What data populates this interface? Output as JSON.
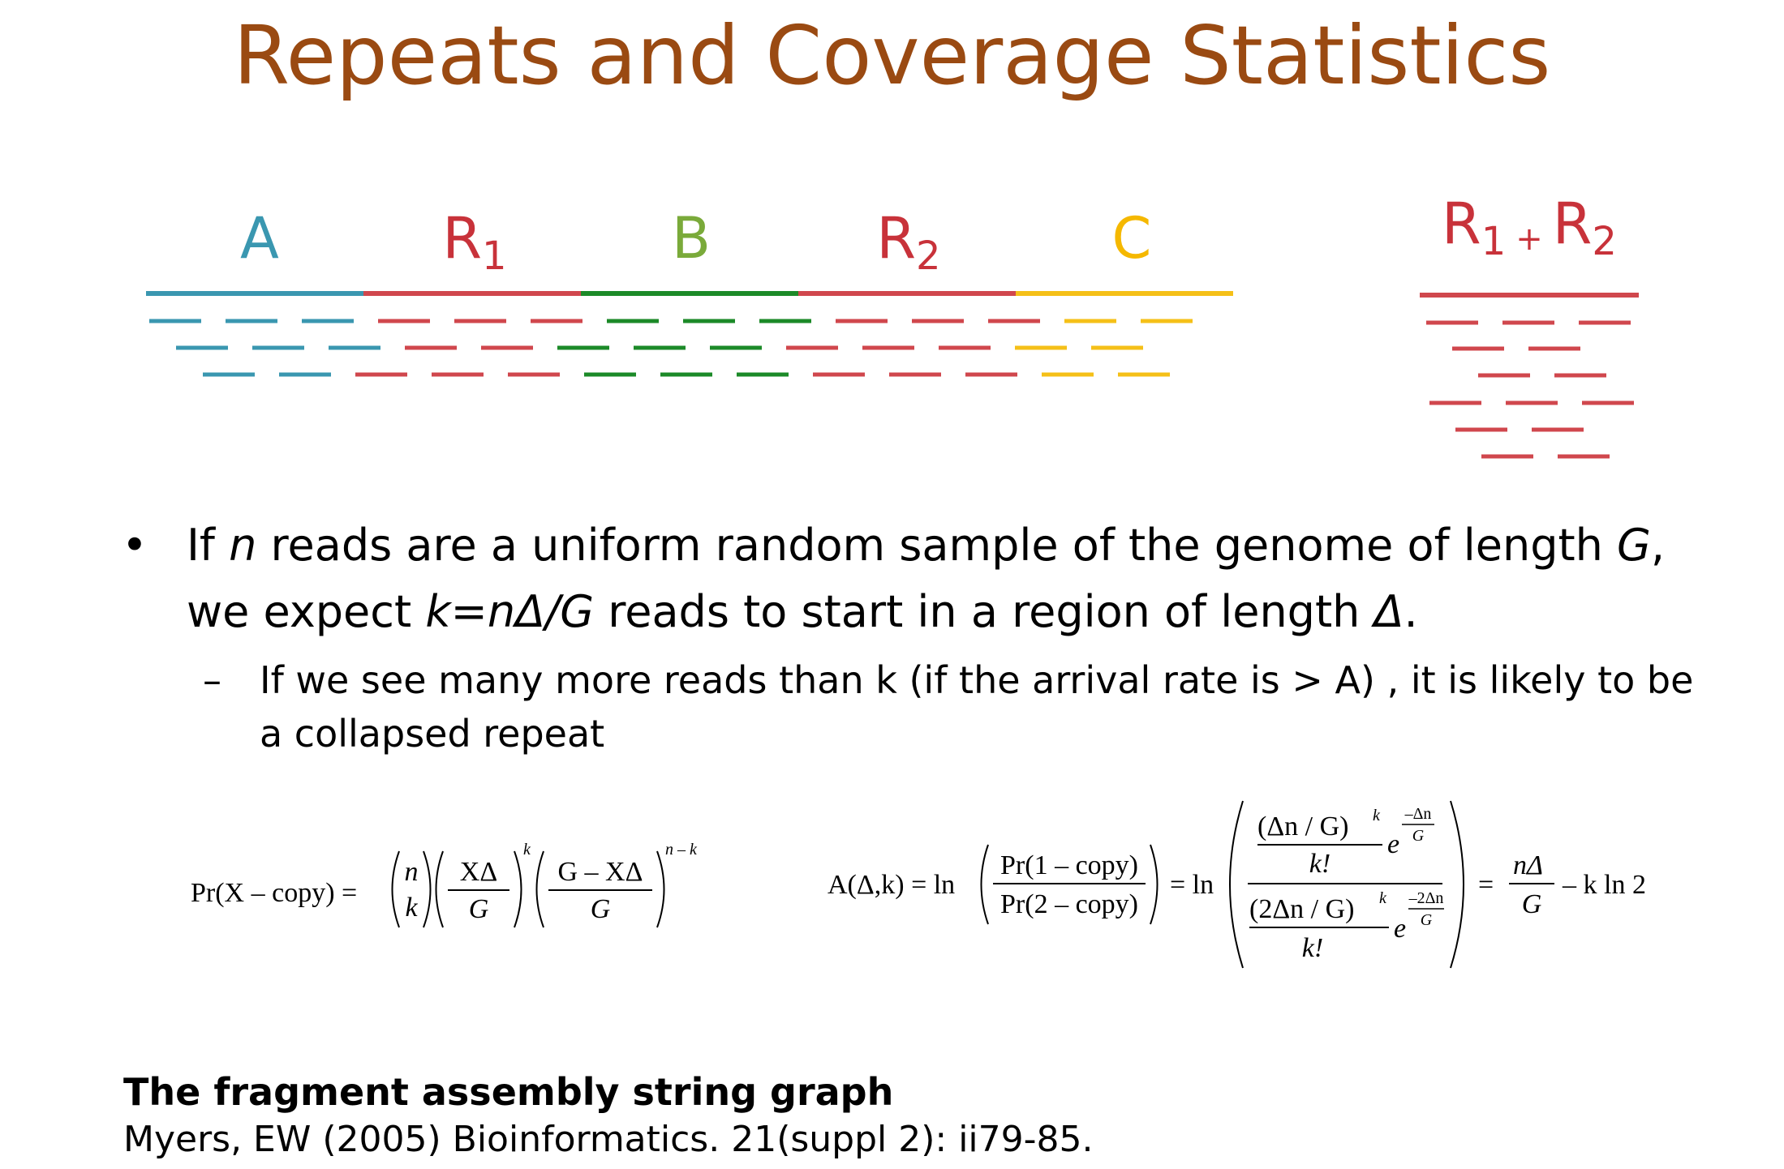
{
  "title": "Repeats and Coverage Statistics",
  "diagram": {
    "segments": [
      {
        "label": "A",
        "sub": "",
        "color": "#3a97b0"
      },
      {
        "label": "R",
        "sub": "1",
        "color": "#c8323a"
      },
      {
        "label": "B",
        "sub": "",
        "color": "#7aaa3a"
      },
      {
        "label": "R",
        "sub": "2",
        "color": "#c8323a"
      },
      {
        "label": "C",
        "sub": "",
        "color": "#f5b800"
      }
    ],
    "read_colors": {
      "A": "#3a97b0",
      "R": "#d0474d",
      "B": "#1c8a28",
      "C": "#f5c018"
    },
    "collapsed_label": {
      "r1": "R",
      "r1_sub": "1",
      "plus": "+",
      "r2": "R",
      "r2_sub": "2",
      "color": "#c8323a"
    }
  },
  "bullet": {
    "symbol": "•",
    "t1": "If ",
    "n": "n",
    "t2": " reads are a uniform random sample of the genome of length ",
    "G": "G",
    "t3": ",",
    "t4": "we expect ",
    "formula": "k=nΔ/G",
    "t5": " reads to start in a region of length ",
    "delta": "Δ",
    "t6": "."
  },
  "sub_bullet": {
    "symbol": "–",
    "line1": "If we see many more reads than k (if the arrival rate is > A) , it is likely to be",
    "line2": "a collapsed repeat"
  },
  "equation1": {
    "lhs": "Pr(X – copy) =",
    "binom_top": "n",
    "binom_bottom": "k",
    "frac1_num": "XΔ",
    "frac1_den": "G",
    "exp1": "k",
    "frac2_num": "G – XΔ",
    "frac2_den": "G",
    "exp2": "n – k"
  },
  "equation2": {
    "lhs": "A(Δ,k) = ln",
    "ratio_num": "Pr(1 – copy)",
    "ratio_den": "Pr(2 – copy)",
    "eq_ln": "= ln",
    "top_num": "(Δn / G)",
    "top_k": "k",
    "top_den": "k!",
    "top_e": "e",
    "top_exp_num": "–Δn",
    "top_exp_den": "G",
    "bot_num": "(2Δn / G)",
    "bot_k": "k",
    "bot_den": "k!",
    "bot_e": "e",
    "bot_exp_num": "–2Δn",
    "bot_exp_den": "G",
    "eq": "=",
    "res_num": "nΔ",
    "res_den": "G",
    "res_tail": "– k ln 2"
  },
  "reference": {
    "title": "The fragment assembly string graph",
    "citation": "Myers, EW (2005) Bioinformatics. 21(suppl 2): ii79-85."
  }
}
